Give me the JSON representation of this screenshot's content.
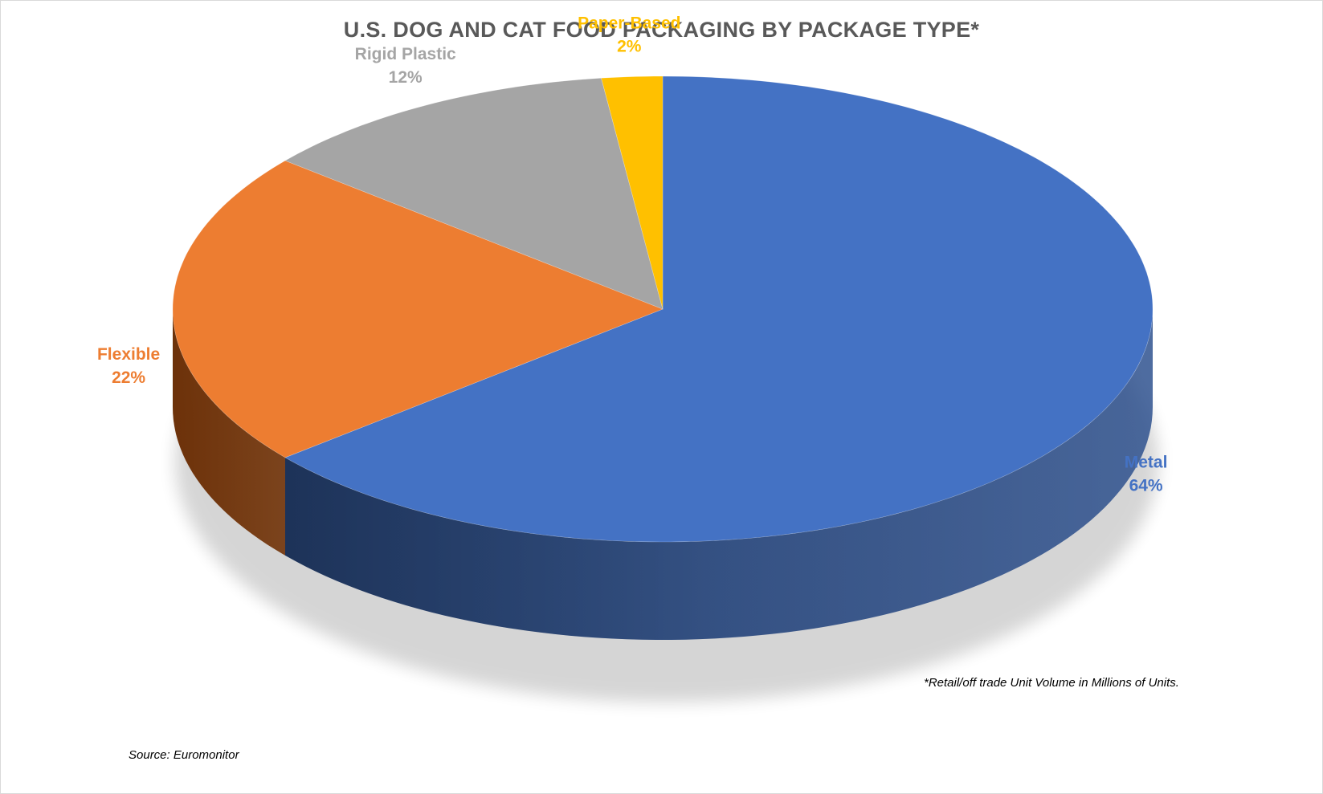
{
  "chart_data": {
    "type": "pie",
    "title": "U.S. DOG AND CAT FOOD PACKAGING BY PACKAGE TYPE*",
    "slices": [
      {
        "label": "Metal",
        "value": 64,
        "value_label": "64%",
        "color": "#4472C4",
        "side_color": "#2F528F"
      },
      {
        "label": "Flexible",
        "value": 22,
        "value_label": "22%",
        "color": "#ED7D31",
        "side_color": "#C55A11"
      },
      {
        "label": "Rigid Plastic",
        "value": 12,
        "value_label": "12%",
        "color": "#A5A5A5",
        "side_color": "#7F7F7F"
      },
      {
        "label": "Paper-Based",
        "value": 2,
        "value_label": "2%",
        "color": "#FFC000",
        "side_color": "#BF9000"
      }
    ],
    "style": "3d-pie",
    "start_angle": "12 o'clock, clockwise",
    "footnote": "*Retail/off trade Unit Volume in Millions of Units.",
    "source": "Source: Euromonitor"
  }
}
